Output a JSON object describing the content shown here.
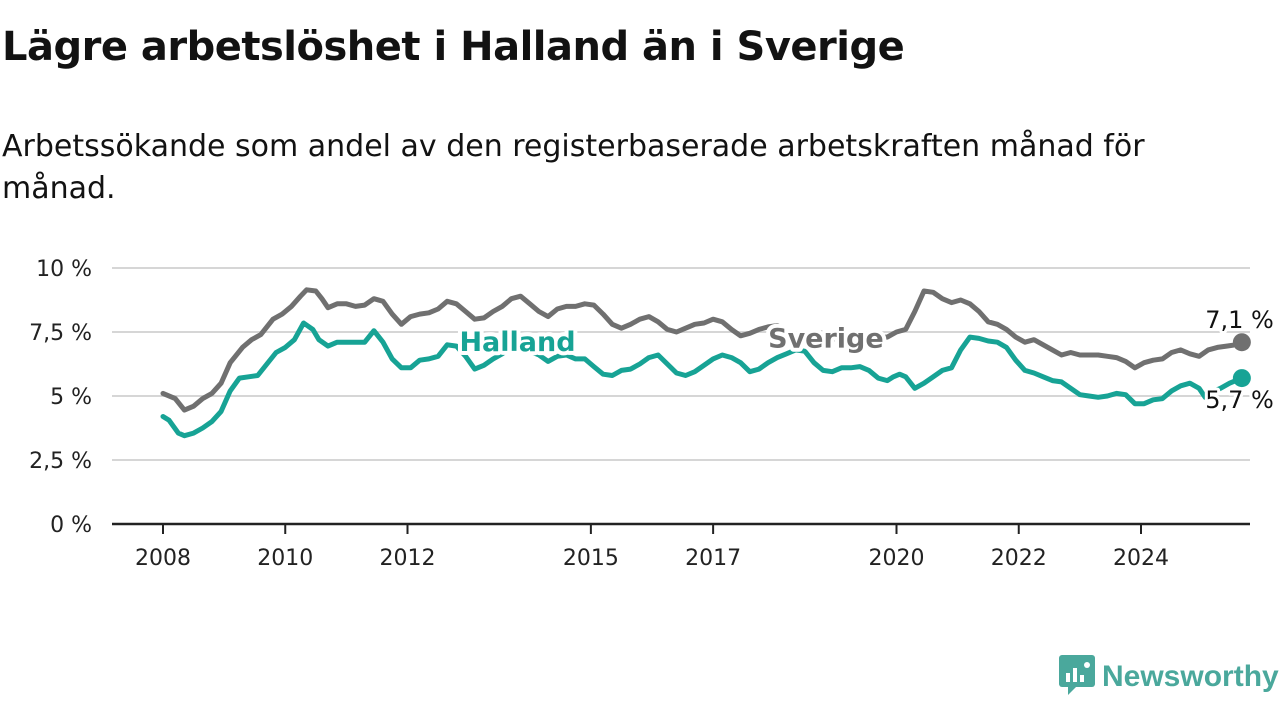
{
  "title": "Lägre arbetslöshet i Halland än i Sverige",
  "subtitle": "Arbetssökande som andel av den registerbaserade arbetskraften månad för månad.",
  "brand": {
    "name": "Newsworthy",
    "icon": "newsworthy-logo-icon",
    "color": "#4aa89c"
  },
  "chart_data": {
    "type": "line",
    "ylim": [
      0,
      10
    ],
    "xlim": [
      2007.5,
      2025.3
    ],
    "grid": true,
    "y_ticks": [
      {
        "value": 0,
        "label": "0 %"
      },
      {
        "value": 2.5,
        "label": "2,5 %"
      },
      {
        "value": 5,
        "label": "5 %"
      },
      {
        "value": 7.5,
        "label": "7,5 %"
      },
      {
        "value": 10,
        "label": "10 %"
      }
    ],
    "x_ticks": [
      {
        "value": 2008,
        "label": "2008"
      },
      {
        "value": 2010,
        "label": "2010"
      },
      {
        "value": 2012,
        "label": "2012"
      },
      {
        "value": 2015,
        "label": "2015"
      },
      {
        "value": 2017,
        "label": "2017"
      },
      {
        "value": 2020,
        "label": "2020"
      },
      {
        "value": 2022,
        "label": "2022"
      },
      {
        "value": 2024,
        "label": "2024"
      }
    ],
    "series": [
      {
        "name": "Sverige",
        "color": "#707070",
        "label_at": [
          2017.9,
          6.9
        ],
        "end_label": "7,1 %",
        "points": [
          [
            2008.0,
            5.1
          ],
          [
            2008.2,
            4.9
          ],
          [
            2008.35,
            4.45
          ],
          [
            2008.5,
            4.6
          ],
          [
            2008.65,
            4.9
          ],
          [
            2008.8,
            5.1
          ],
          [
            2008.95,
            5.5
          ],
          [
            2009.1,
            6.3
          ],
          [
            2009.3,
            6.9
          ],
          [
            2009.45,
            7.2
          ],
          [
            2009.6,
            7.4
          ],
          [
            2009.8,
            8.0
          ],
          [
            2009.95,
            8.2
          ],
          [
            2010.1,
            8.5
          ],
          [
            2010.25,
            8.9
          ],
          [
            2010.35,
            9.15
          ],
          [
            2010.5,
            9.1
          ],
          [
            2010.6,
            8.8
          ],
          [
            2010.7,
            8.45
          ],
          [
            2010.85,
            8.6
          ],
          [
            2011.0,
            8.6
          ],
          [
            2011.15,
            8.5
          ],
          [
            2011.3,
            8.55
          ],
          [
            2011.45,
            8.8
          ],
          [
            2011.6,
            8.7
          ],
          [
            2011.75,
            8.2
          ],
          [
            2011.9,
            7.8
          ],
          [
            2012.05,
            8.1
          ],
          [
            2012.2,
            8.2
          ],
          [
            2012.35,
            8.25
          ],
          [
            2012.5,
            8.4
          ],
          [
            2012.65,
            8.7
          ],
          [
            2012.8,
            8.6
          ],
          [
            2012.95,
            8.3
          ],
          [
            2013.1,
            8.0
          ],
          [
            2013.25,
            8.05
          ],
          [
            2013.4,
            8.3
          ],
          [
            2013.55,
            8.5
          ],
          [
            2013.7,
            8.8
          ],
          [
            2013.85,
            8.9
          ],
          [
            2014.0,
            8.6
          ],
          [
            2014.15,
            8.3
          ],
          [
            2014.3,
            8.1
          ],
          [
            2014.45,
            8.4
          ],
          [
            2014.6,
            8.5
          ],
          [
            2014.75,
            8.5
          ],
          [
            2014.9,
            8.6
          ],
          [
            2015.05,
            8.55
          ],
          [
            2015.2,
            8.2
          ],
          [
            2015.35,
            7.8
          ],
          [
            2015.5,
            7.65
          ],
          [
            2015.65,
            7.8
          ],
          [
            2015.8,
            8.0
          ],
          [
            2015.95,
            8.1
          ],
          [
            2016.1,
            7.9
          ],
          [
            2016.25,
            7.6
          ],
          [
            2016.4,
            7.5
          ],
          [
            2016.55,
            7.65
          ],
          [
            2016.7,
            7.8
          ],
          [
            2016.85,
            7.85
          ],
          [
            2017.0,
            8.0
          ],
          [
            2017.15,
            7.9
          ],
          [
            2017.3,
            7.6
          ],
          [
            2017.45,
            7.35
          ],
          [
            2017.6,
            7.45
          ],
          [
            2017.75,
            7.6
          ],
          [
            2017.9,
            7.7
          ],
          [
            2018.05,
            7.75
          ],
          [
            2018.2,
            7.5
          ],
          [
            2018.35,
            7.3
          ],
          [
            2018.5,
            7.35
          ],
          [
            2018.65,
            7.5
          ],
          [
            2018.8,
            7.45
          ],
          [
            2018.95,
            7.3
          ],
          [
            2019.1,
            7.1
          ],
          [
            2019.25,
            7.0
          ],
          [
            2019.4,
            6.95
          ],
          [
            2019.55,
            7.1
          ],
          [
            2019.7,
            7.3
          ],
          [
            2019.85,
            7.3
          ],
          [
            2020.0,
            7.5
          ],
          [
            2020.15,
            7.6
          ],
          [
            2020.3,
            8.3
          ],
          [
            2020.45,
            9.1
          ],
          [
            2020.6,
            9.05
          ],
          [
            2020.75,
            8.8
          ],
          [
            2020.9,
            8.65
          ],
          [
            2021.05,
            8.75
          ],
          [
            2021.2,
            8.6
          ],
          [
            2021.35,
            8.3
          ],
          [
            2021.5,
            7.9
          ],
          [
            2021.65,
            7.8
          ],
          [
            2021.8,
            7.6
          ],
          [
            2021.95,
            7.3
          ],
          [
            2022.1,
            7.1
          ],
          [
            2022.25,
            7.2
          ],
          [
            2022.4,
            7.0
          ],
          [
            2022.55,
            6.8
          ],
          [
            2022.7,
            6.6
          ],
          [
            2022.85,
            6.7
          ],
          [
            2023.0,
            6.6
          ],
          [
            2023.15,
            6.6
          ],
          [
            2023.3,
            6.6
          ],
          [
            2023.45,
            6.55
          ],
          [
            2023.6,
            6.5
          ],
          [
            2023.75,
            6.35
          ],
          [
            2023.9,
            6.1
          ],
          [
            2024.05,
            6.3
          ],
          [
            2024.2,
            6.4
          ],
          [
            2024.35,
            6.45
          ],
          [
            2024.5,
            6.7
          ],
          [
            2024.65,
            6.8
          ],
          [
            2024.8,
            6.65
          ],
          [
            2024.95,
            6.55
          ],
          [
            2025.1,
            6.8
          ],
          [
            2025.25,
            6.9
          ],
          [
            2025.4,
            6.95
          ],
          [
            2025.55,
            7.0
          ],
          [
            2025.65,
            7.1
          ]
        ]
      },
      {
        "name": "Halland",
        "color": "#17a395",
        "label_at": [
          2012.85,
          6.75
        ],
        "end_label": "5,7 %",
        "points": [
          [
            2008.0,
            4.2
          ],
          [
            2008.1,
            4.05
          ],
          [
            2008.25,
            3.55
          ],
          [
            2008.35,
            3.45
          ],
          [
            2008.5,
            3.55
          ],
          [
            2008.65,
            3.75
          ],
          [
            2008.8,
            4.0
          ],
          [
            2008.95,
            4.4
          ],
          [
            2009.1,
            5.2
          ],
          [
            2009.25,
            5.7
          ],
          [
            2009.4,
            5.75
          ],
          [
            2009.55,
            5.8
          ],
          [
            2009.7,
            6.25
          ],
          [
            2009.85,
            6.7
          ],
          [
            2010.0,
            6.9
          ],
          [
            2010.15,
            7.2
          ],
          [
            2010.3,
            7.85
          ],
          [
            2010.45,
            7.6
          ],
          [
            2010.55,
            7.2
          ],
          [
            2010.7,
            6.95
          ],
          [
            2010.85,
            7.1
          ],
          [
            2011.0,
            7.1
          ],
          [
            2011.15,
            7.1
          ],
          [
            2011.3,
            7.1
          ],
          [
            2011.45,
            7.55
          ],
          [
            2011.6,
            7.1
          ],
          [
            2011.75,
            6.45
          ],
          [
            2011.9,
            6.1
          ],
          [
            2012.05,
            6.1
          ],
          [
            2012.2,
            6.4
          ],
          [
            2012.35,
            6.45
          ],
          [
            2012.5,
            6.55
          ],
          [
            2012.65,
            7.0
          ],
          [
            2012.8,
            6.95
          ],
          [
            2012.95,
            6.55
          ],
          [
            2013.1,
            6.05
          ],
          [
            2013.25,
            6.2
          ],
          [
            2013.4,
            6.45
          ],
          [
            2013.55,
            6.65
          ],
          [
            2013.7,
            6.9
          ],
          [
            2013.85,
            7.0
          ],
          [
            2014.0,
            6.75
          ],
          [
            2014.15,
            6.6
          ],
          [
            2014.3,
            6.35
          ],
          [
            2014.45,
            6.55
          ],
          [
            2014.6,
            6.6
          ],
          [
            2014.75,
            6.45
          ],
          [
            2014.9,
            6.45
          ],
          [
            2015.05,
            6.15
          ],
          [
            2015.2,
            5.85
          ],
          [
            2015.35,
            5.8
          ],
          [
            2015.5,
            6.0
          ],
          [
            2015.65,
            6.05
          ],
          [
            2015.8,
            6.25
          ],
          [
            2015.95,
            6.5
          ],
          [
            2016.1,
            6.6
          ],
          [
            2016.25,
            6.25
          ],
          [
            2016.4,
            5.9
          ],
          [
            2016.55,
            5.8
          ],
          [
            2016.7,
            5.95
          ],
          [
            2016.85,
            6.2
          ],
          [
            2017.0,
            6.45
          ],
          [
            2017.15,
            6.6
          ],
          [
            2017.3,
            6.5
          ],
          [
            2017.45,
            6.3
          ],
          [
            2017.6,
            5.95
          ],
          [
            2017.75,
            6.05
          ],
          [
            2017.9,
            6.3
          ],
          [
            2018.05,
            6.5
          ],
          [
            2018.2,
            6.65
          ],
          [
            2018.35,
            6.8
          ],
          [
            2018.5,
            6.75
          ],
          [
            2018.65,
            6.3
          ],
          [
            2018.8,
            6.0
          ],
          [
            2018.95,
            5.95
          ],
          [
            2019.1,
            6.1
          ],
          [
            2019.25,
            6.1
          ],
          [
            2019.4,
            6.15
          ],
          [
            2019.55,
            6.0
          ],
          [
            2019.7,
            5.7
          ],
          [
            2019.85,
            5.6
          ],
          [
            2019.95,
            5.75
          ],
          [
            2020.05,
            5.85
          ],
          [
            2020.15,
            5.75
          ],
          [
            2020.3,
            5.3
          ],
          [
            2020.45,
            5.5
          ],
          [
            2020.6,
            5.75
          ],
          [
            2020.75,
            6.0
          ],
          [
            2020.9,
            6.1
          ],
          [
            2021.05,
            6.8
          ],
          [
            2021.2,
            7.3
          ],
          [
            2021.35,
            7.25
          ],
          [
            2021.5,
            7.15
          ],
          [
            2021.65,
            7.1
          ],
          [
            2021.8,
            6.9
          ],
          [
            2021.95,
            6.4
          ],
          [
            2022.1,
            6.0
          ],
          [
            2022.25,
            5.9
          ],
          [
            2022.4,
            5.75
          ],
          [
            2022.55,
            5.6
          ],
          [
            2022.7,
            5.55
          ],
          [
            2022.85,
            5.3
          ],
          [
            2023.0,
            5.05
          ],
          [
            2023.15,
            5.0
          ],
          [
            2023.3,
            4.95
          ],
          [
            2023.45,
            5.0
          ],
          [
            2023.6,
            5.1
          ],
          [
            2023.75,
            5.05
          ],
          [
            2023.9,
            4.7
          ],
          [
            2024.05,
            4.7
          ],
          [
            2024.2,
            4.85
          ],
          [
            2024.35,
            4.9
          ],
          [
            2024.5,
            5.2
          ],
          [
            2024.65,
            5.4
          ],
          [
            2024.8,
            5.5
          ],
          [
            2024.95,
            5.3
          ],
          [
            2025.05,
            4.95
          ],
          [
            2025.15,
            5.15
          ],
          [
            2025.3,
            5.3
          ],
          [
            2025.45,
            5.5
          ],
          [
            2025.65,
            5.7
          ]
        ]
      }
    ]
  }
}
